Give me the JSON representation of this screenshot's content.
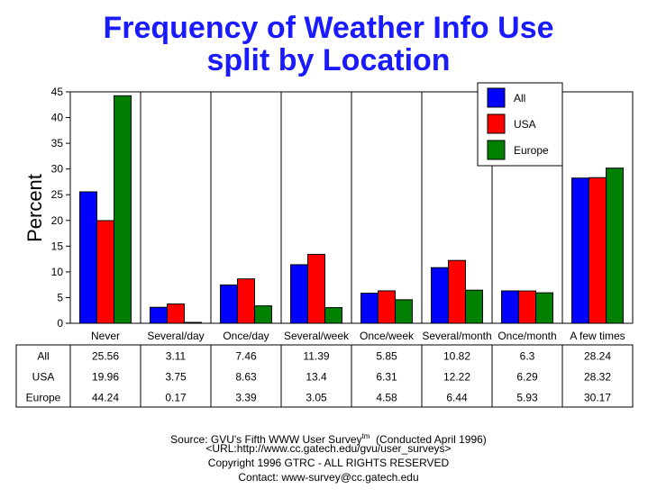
{
  "chart_data": {
    "type": "bar",
    "title": "Frequency of Weather Info Use",
    "subtitle": "split by Location",
    "ylabel": "Percent",
    "ylim": [
      0,
      45
    ],
    "yticks": [
      0,
      5,
      10,
      15,
      20,
      25,
      30,
      35,
      40,
      45
    ],
    "categories": [
      "Never",
      "Several/day",
      "Once/day",
      "Several/week",
      "Once/week",
      "Several/month",
      "Once/month",
      "A few times"
    ],
    "series": [
      {
        "name": "All",
        "color": "#0000ff",
        "values": [
          25.56,
          3.11,
          7.46,
          11.39,
          5.85,
          10.82,
          6.3,
          28.24
        ],
        "labels": [
          "25.56",
          "3.11",
          "7.46",
          "11.39",
          "5.85",
          "10.82",
          "6.3",
          "28.24"
        ]
      },
      {
        "name": "USA",
        "color": "#ff0000",
        "values": [
          19.96,
          3.75,
          8.63,
          13.4,
          6.31,
          12.22,
          6.29,
          28.32
        ],
        "labels": [
          "19.96",
          "3.75",
          "8.63",
          "13.4",
          "6.31",
          "12.22",
          "6.29",
          "28.32"
        ]
      },
      {
        "name": "Europe",
        "color": "#008000",
        "values": [
          44.24,
          0.17,
          3.39,
          3.05,
          4.58,
          6.44,
          5.93,
          30.17
        ],
        "labels": [
          "44.24",
          "0.17",
          "3.39",
          "3.05",
          "4.58",
          "6.44",
          "5.93",
          "30.17"
        ]
      }
    ],
    "grid": "vertical",
    "legend": "top-right"
  },
  "footer": {
    "source_line": "Source: GVU's Fifth WWW User Survey",
    "source_tm": "tm",
    "source_conducted": "  (Conducted April 1996)",
    "url_line": "<URL:http://www.cc.gatech.edu/gvu/user_surveys>",
    "copyright_line": "Copyright 1996 GTRC -  ALL RIGHTS RESERVED",
    "contact_line": "Contact: www-survey@cc.gatech.edu"
  }
}
